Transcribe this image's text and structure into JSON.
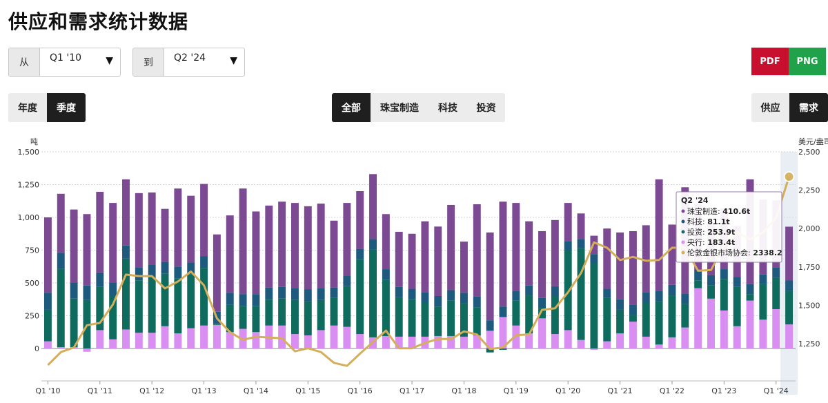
{
  "page": {
    "title": "供应和需求统计数据"
  },
  "range": {
    "from_label": "从",
    "from_value": "Q1 '10",
    "to_label": "到",
    "to_value": "Q2 '24"
  },
  "export": {
    "pdf": "PDF",
    "png": "PNG",
    "pdf_color": "#c8102e",
    "png_color": "#1fa24a"
  },
  "period_toggle": {
    "annual": "年度",
    "quarterly": "季度",
    "active": "quarterly"
  },
  "category_toggle": {
    "all": "全部",
    "jewellery": "珠宝制造",
    "technology": "科技",
    "investment": "投资",
    "active": "all"
  },
  "side_toggle": {
    "supply": "供应",
    "demand": "需求",
    "active": "demand"
  },
  "colors": {
    "jewellery": "#7b4a93",
    "technology": "#1e5a7d",
    "investment": "#0f6b5e",
    "central_banks": "#d98ef2",
    "price": "#d4ae5a",
    "highlight": "#e9edf4"
  },
  "chart_data": {
    "type": "bar",
    "stacked": true,
    "left_axis_unit": "吨",
    "right_axis_unit": "美元/盎司",
    "ylim_left": [
      -250,
      1500
    ],
    "ylim_right": [
      1100,
      2500
    ],
    "yticks_left": [
      "0",
      "250",
      "500",
      "750",
      "1,000",
      "1,250",
      "1,500"
    ],
    "yticks_right": [
      "1,250",
      "1,500",
      "1,750",
      "2,000",
      "2,250",
      "2,500"
    ],
    "x_tick_labels": [
      "Q1 '10",
      "Q1 '11",
      "Q1 '12",
      "Q1 '13",
      "Q1 '14",
      "Q1 '15",
      "Q1 '16",
      "Q1 '17",
      "Q1 '18",
      "Q1 '19",
      "Q1 '20",
      "Q1 '21",
      "Q1 '22",
      "Q1 '23",
      "Q1 '24"
    ],
    "categories": [
      "Q1 '10",
      "Q2 '10",
      "Q3 '10",
      "Q4 '10",
      "Q1 '11",
      "Q2 '11",
      "Q3 '11",
      "Q4 '11",
      "Q1 '12",
      "Q2 '12",
      "Q3 '12",
      "Q4 '12",
      "Q1 '13",
      "Q2 '13",
      "Q3 '13",
      "Q4 '13",
      "Q1 '14",
      "Q2 '14",
      "Q3 '14",
      "Q4 '14",
      "Q1 '15",
      "Q2 '15",
      "Q3 '15",
      "Q4 '15",
      "Q1 '16",
      "Q2 '16",
      "Q3 '16",
      "Q4 '16",
      "Q1 '17",
      "Q2 '17",
      "Q3 '17",
      "Q4 '17",
      "Q1 '18",
      "Q2 '18",
      "Q3 '18",
      "Q4 '18",
      "Q1 '19",
      "Q2 '19",
      "Q3 '19",
      "Q4 '19",
      "Q1 '20",
      "Q2 '20",
      "Q3 '20",
      "Q4 '20",
      "Q1 '21",
      "Q2 '21",
      "Q3 '21",
      "Q4 '21",
      "Q1 '22",
      "Q2 '22",
      "Q3 '22",
      "Q4 '22",
      "Q1 '23",
      "Q2 '23",
      "Q3 '23",
      "Q4 '23",
      "Q1 '24",
      "Q2 '24"
    ],
    "series": [
      {
        "name": "央行",
        "key": "central_banks",
        "values": [
          55,
          10,
          10,
          -25,
          140,
          70,
          145,
          120,
          120,
          170,
          115,
          155,
          175,
          180,
          125,
          150,
          125,
          175,
          175,
          110,
          100,
          140,
          175,
          165,
          110,
          85,
          95,
          90,
          90,
          90,
          95,
          95,
          90,
          100,
          135,
          240,
          175,
          115,
          230,
          110,
          140,
          65,
          -10,
          55,
          115,
          205,
          90,
          30,
          85,
          160,
          460,
          380,
          290,
          170,
          365,
          220,
          300,
          183.4
        ]
      },
      {
        "name": "投资",
        "key": "investment",
        "values": [
          240,
          600,
          370,
          370,
          330,
          330,
          540,
          400,
          430,
          400,
          420,
          410,
          440,
          10,
          210,
          175,
          200,
          200,
          205,
          260,
          260,
          230,
          210,
          310,
          570,
          670,
          430,
          300,
          285,
          260,
          225,
          270,
          255,
          215,
          -30,
          -10,
          190,
          290,
          80,
          290,
          610,
          700,
          650,
          330,
          180,
          50,
          260,
          330,
          320,
          180,
          60,
          100,
          240,
          300,
          50,
          270,
          240,
          253.9
        ]
      },
      {
        "name": "科技",
        "key": "technology",
        "values": [
          130,
          120,
          120,
          110,
          110,
          100,
          100,
          100,
          90,
          90,
          90,
          90,
          90,
          90,
          90,
          90,
          90,
          90,
          90,
          90,
          90,
          90,
          80,
          80,
          80,
          80,
          80,
          80,
          80,
          80,
          80,
          80,
          80,
          80,
          80,
          80,
          75,
          75,
          75,
          75,
          70,
          70,
          70,
          70,
          80,
          80,
          80,
          80,
          80,
          80,
          80,
          80,
          75,
          75,
          75,
          75,
          80,
          81.1
        ]
      },
      {
        "name": "珠宝制造",
        "key": "jewellery",
        "values": [
          575,
          450,
          560,
          545,
          615,
          610,
          505,
          565,
          550,
          405,
          595,
          510,
          550,
          590,
          590,
          805,
          630,
          625,
          650,
          650,
          635,
          645,
          510,
          555,
          440,
          495,
          420,
          420,
          420,
          540,
          530,
          650,
          390,
          705,
          670,
          800,
          670,
          490,
          510,
          505,
          290,
          195,
          140,
          460,
          510,
          560,
          510,
          850,
          460,
          810,
          500,
          400,
          465,
          390,
          800,
          570,
          510,
          410.6
        ]
      }
    ],
    "line": {
      "name": "伦敦金银市场协会",
      "axis": "right",
      "values": [
        1110,
        1195,
        1225,
        1370,
        1385,
        1505,
        1700,
        1690,
        1690,
        1610,
        1655,
        1720,
        1630,
        1415,
        1325,
        1275,
        1295,
        1290,
        1285,
        1200,
        1220,
        1195,
        1125,
        1105,
        1185,
        1260,
        1335,
        1220,
        1220,
        1255,
        1280,
        1280,
        1330,
        1310,
        1215,
        1225,
        1305,
        1310,
        1470,
        1480,
        1585,
        1710,
        1910,
        1875,
        1795,
        1815,
        1790,
        1795,
        1875,
        1875,
        1725,
        1730,
        1890,
        1975,
        1930,
        1975,
        2070,
        2338.2
      ]
    },
    "tooltip": {
      "title": "Q2 '24",
      "rows": [
        {
          "label": "珠宝制造",
          "value": "410.6t",
          "key": "jewellery"
        },
        {
          "label": "科技",
          "value": "81.1t",
          "key": "technology"
        },
        {
          "label": "投资",
          "value": "253.9t",
          "key": "investment"
        },
        {
          "label": "央行",
          "value": "183.4t",
          "key": "central_banks"
        },
        {
          "label": "伦敦金银市场协会",
          "value": "2338.2",
          "key": "price"
        }
      ]
    }
  }
}
